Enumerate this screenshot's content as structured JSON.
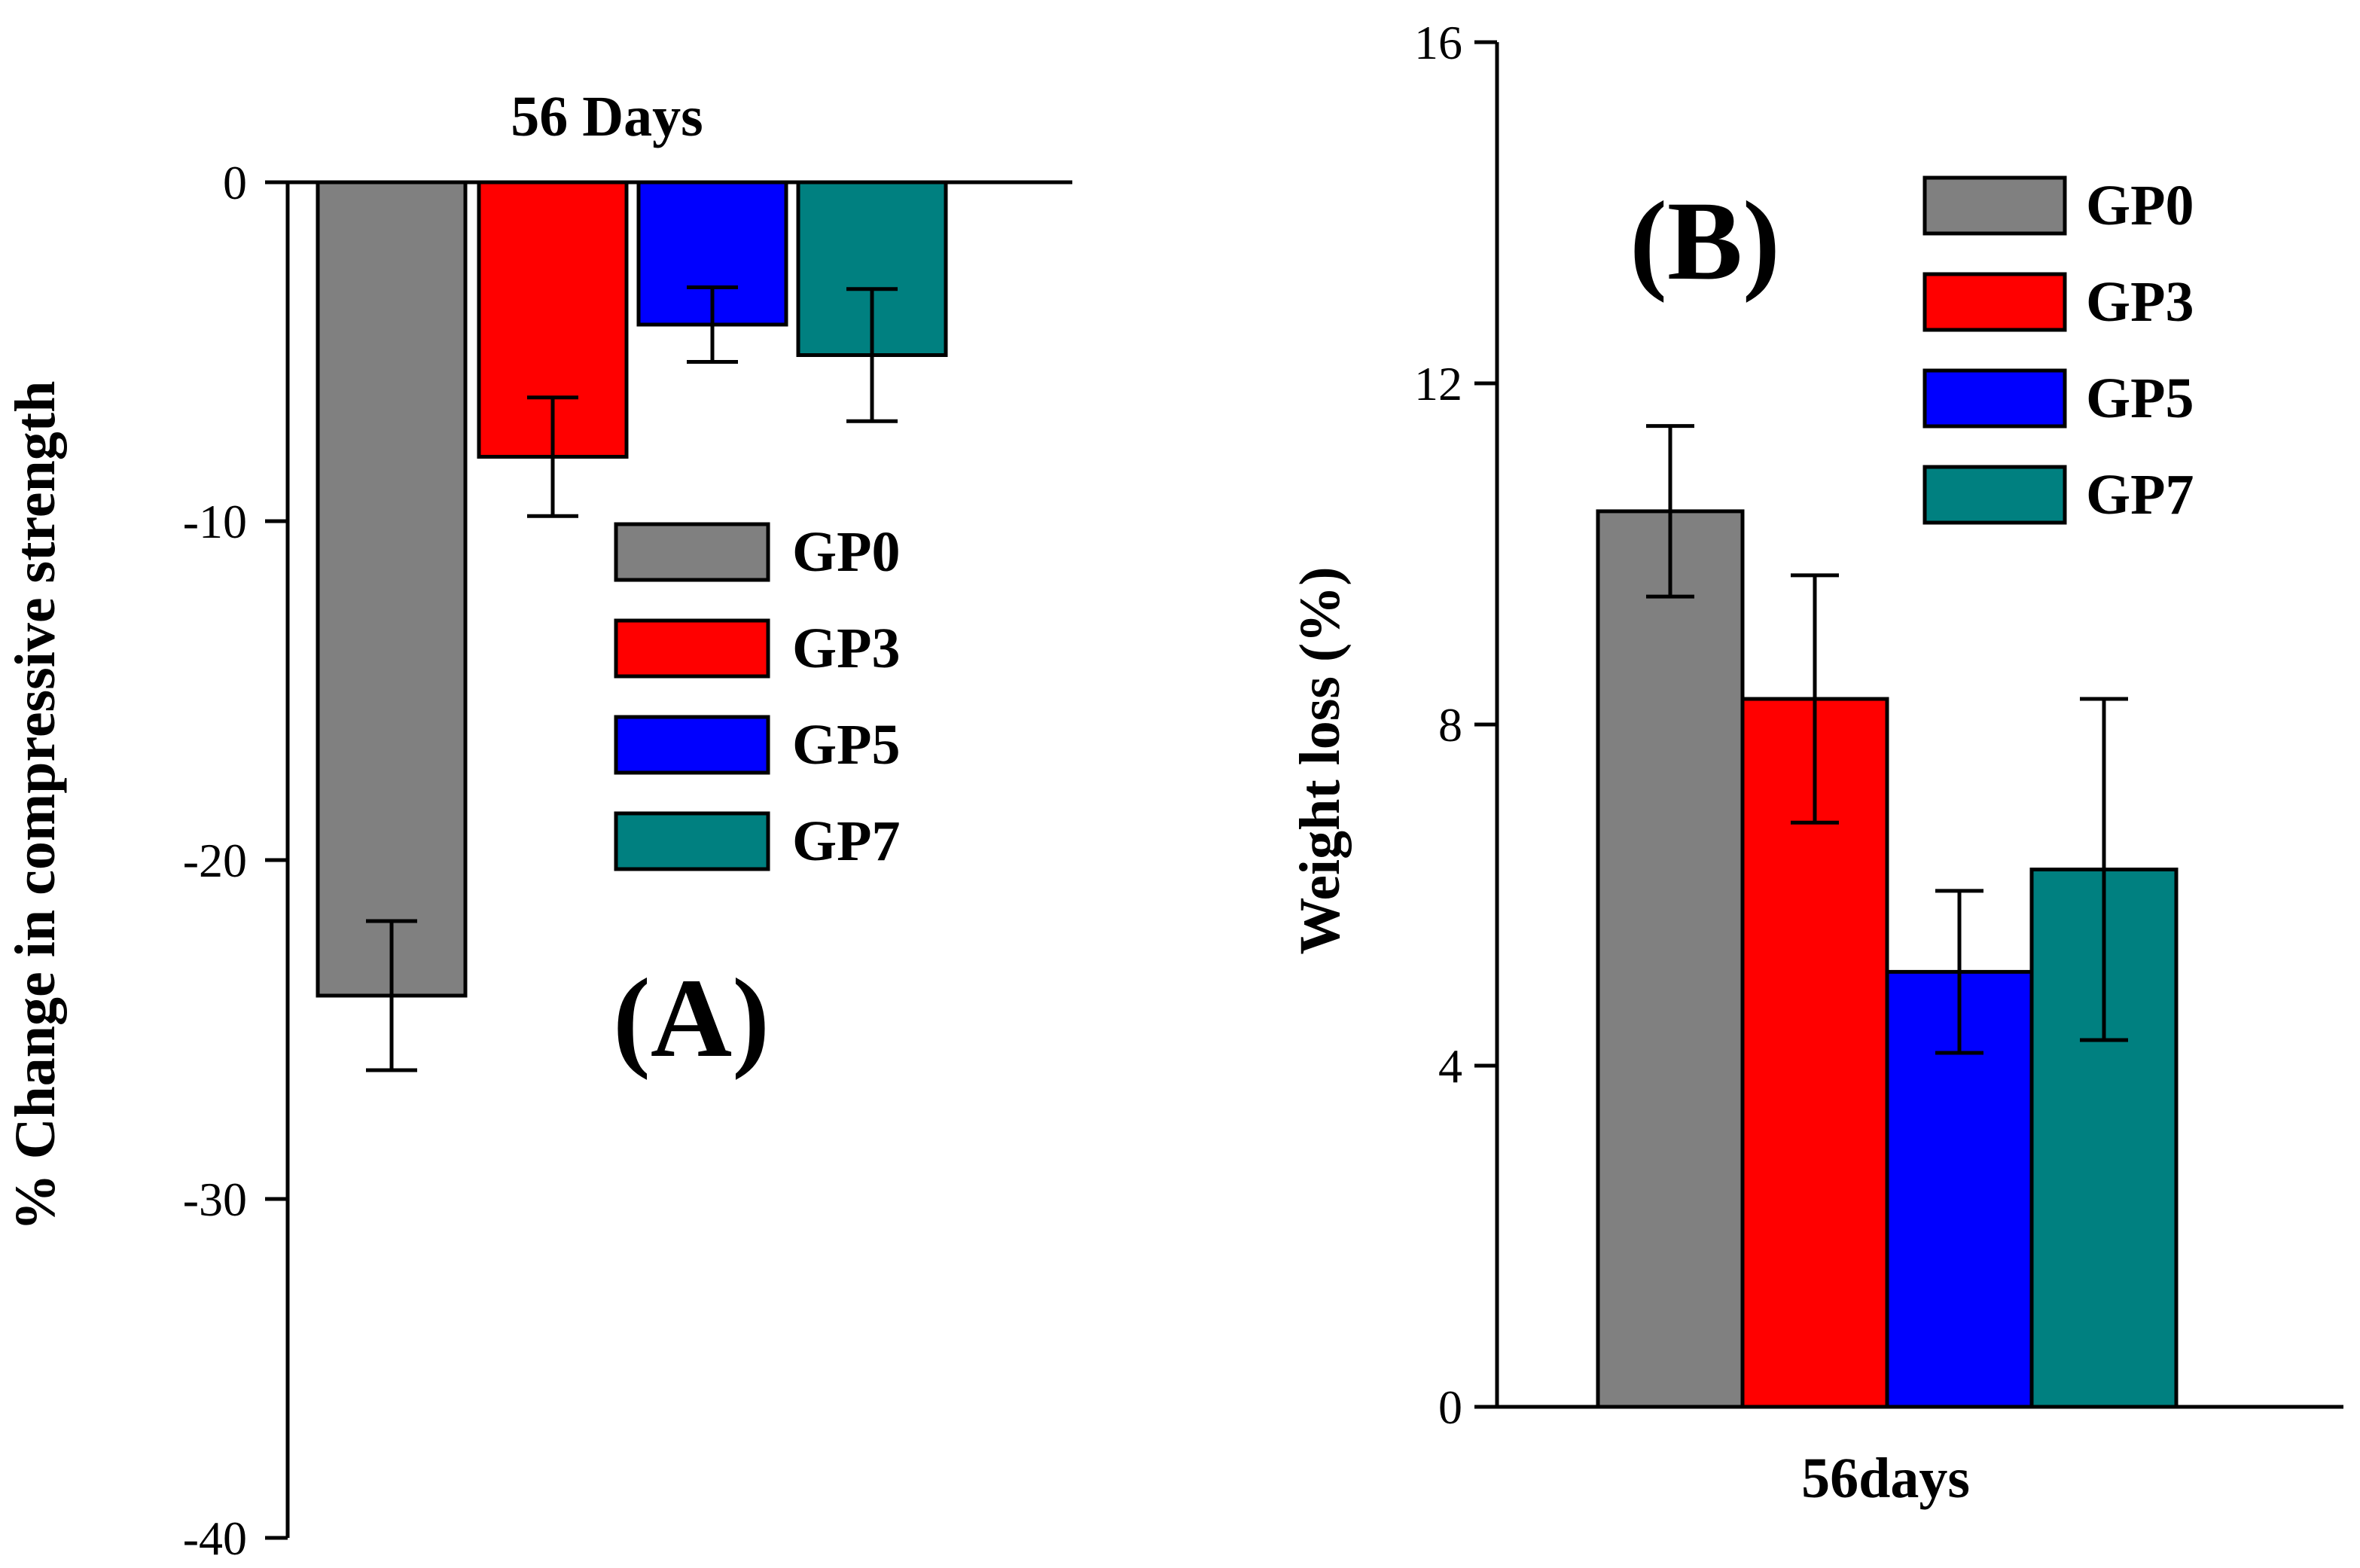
{
  "chart_data": [
    {
      "panel": "A",
      "type": "bar",
      "panel_label": "(A)",
      "title": "56 Days",
      "xlabel": "",
      "ylabel": "% Change in compressive strength",
      "ylim": [
        -40,
        0
      ],
      "yticks": [
        0,
        -10,
        -20,
        -30,
        -40
      ],
      "series": [
        {
          "name": "GP0",
          "color": "#808080",
          "value": -24,
          "err": 2.2
        },
        {
          "name": "GP3",
          "color": "#ff0000",
          "value": -8.1,
          "err": 1.75
        },
        {
          "name": "GP5",
          "color": "#0000ff",
          "value": -4.2,
          "err": 1.1
        },
        {
          "name": "GP7",
          "color": "#008080",
          "value": -5.1,
          "err": 1.95
        }
      ],
      "legend_position": "right-middle"
    },
    {
      "panel": "B",
      "type": "bar",
      "panel_label": "(B)",
      "title": "",
      "xlabel": "56days",
      "ylabel": "Weight loss (%)",
      "ylim": [
        0,
        16
      ],
      "yticks": [
        0,
        4,
        8,
        12,
        16
      ],
      "series": [
        {
          "name": "GP0",
          "color": "#808080",
          "value": 10.5,
          "err": 1.0
        },
        {
          "name": "GP3",
          "color": "#ff0000",
          "value": 8.3,
          "err": 1.45
        },
        {
          "name": "GP5",
          "color": "#0000ff",
          "value": 5.1,
          "err": 0.95
        },
        {
          "name": "GP7",
          "color": "#008080",
          "value": 6.3,
          "err": 2.0
        }
      ],
      "legend_position": "top-right"
    }
  ]
}
